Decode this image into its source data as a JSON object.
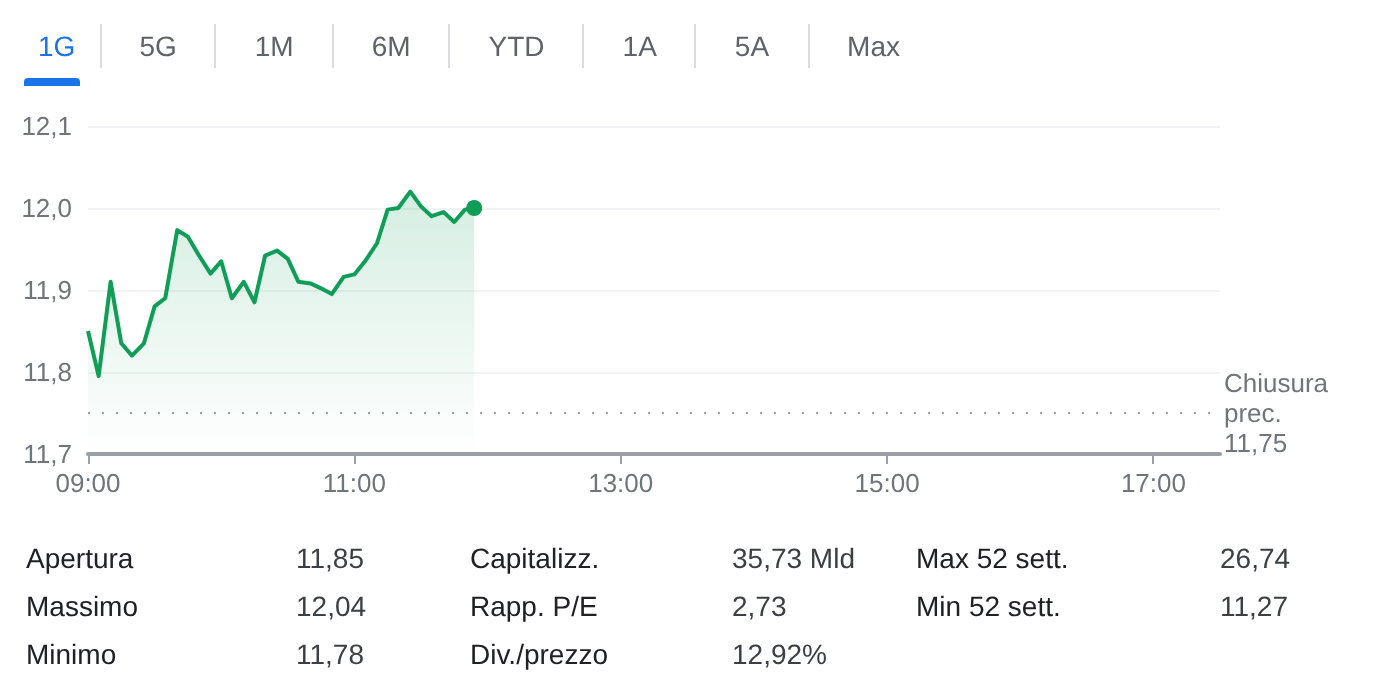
{
  "chart_data": {
    "type": "area",
    "x": [
      9.0,
      9.08,
      9.17,
      9.25,
      9.33,
      9.42,
      9.5,
      9.58,
      9.67,
      9.75,
      9.83,
      9.92,
      10.0,
      10.08,
      10.17,
      10.25,
      10.33,
      10.42,
      10.5,
      10.58,
      10.67,
      10.75,
      10.83,
      10.92,
      11.0,
      11.08,
      11.17,
      11.25,
      11.33,
      11.42,
      11.5,
      11.58,
      11.67,
      11.75,
      11.83,
      11.9
    ],
    "series": [
      {
        "color": "#0f9d58",
        "values": [
          11.85,
          11.795,
          11.91,
          11.835,
          11.82,
          11.835,
          11.88,
          11.89,
          11.973,
          11.965,
          11.943,
          11.92,
          11.935,
          11.89,
          11.91,
          11.885,
          11.942,
          11.948,
          11.938,
          11.91,
          11.908,
          11.902,
          11.895,
          11.916,
          11.919,
          11.935,
          11.957,
          11.998,
          12.0,
          12.02,
          12.002,
          11.99,
          11.995,
          11.983,
          11.998,
          12.0
        ]
      }
    ],
    "xlim": [
      9,
      17.5
    ],
    "xticks": [
      {
        "value": 9,
        "label": "09:00"
      },
      {
        "value": 11,
        "label": "11:00"
      },
      {
        "value": 13,
        "label": "13:00"
      },
      {
        "value": 15,
        "label": "15:00"
      },
      {
        "value": 17,
        "label": "17:00"
      }
    ],
    "ylim": [
      11.7,
      12.1
    ],
    "yticks": [
      {
        "value": 11.7,
        "label": "11,7"
      },
      {
        "value": 11.8,
        "label": "11,8"
      },
      {
        "value": 11.9,
        "label": "11,9"
      },
      {
        "value": 12.0,
        "label": "12,0"
      },
      {
        "value": 12.1,
        "label": "12,1"
      }
    ],
    "grid": "y",
    "ref_lines": [
      {
        "axis": "y",
        "value": 11.75,
        "label": "Chiusura prec. 11,75",
        "line_style": "dotted",
        "color": "#9aa0a6"
      }
    ],
    "annotations": [
      "1G",
      "5G",
      "1M",
      "6M",
      "YTD",
      "1A",
      "5A",
      "Max",
      "Apertura",
      "11,85",
      "Capitalizz.",
      "35,73 Mld",
      "Max 52 sett.",
      "26,74",
      "Massimo",
      "12,04",
      "Rapp. P/E",
      "2,73",
      "Min 52 sett.",
      "11,27",
      "Minimo",
      "11,78",
      "Div./prezzo",
      "12,92%"
    ]
  }
}
